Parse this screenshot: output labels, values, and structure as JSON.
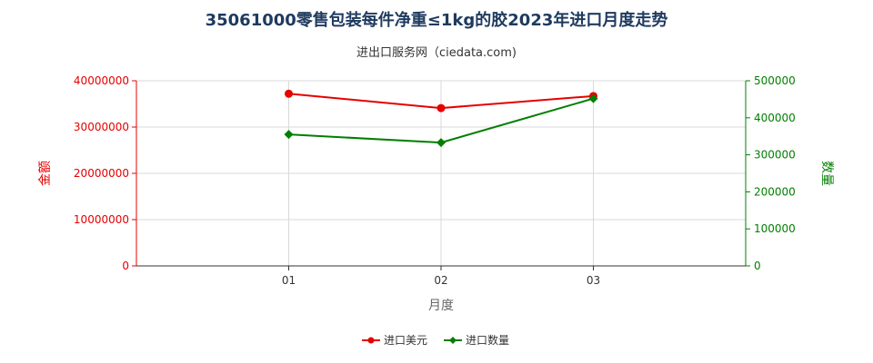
{
  "chart_data": {
    "type": "line",
    "title": "35061000零售包装每件净重≤1kg的胶2023年进口月度走势",
    "subtitle": "进出口服务网（ciedata.com)",
    "xlabel": "月度",
    "ylabel_left": "金额",
    "ylabel_right": "数量",
    "categories": [
      "01",
      "02",
      "03"
    ],
    "y_left": {
      "min": 0,
      "max": 40000000,
      "ticks": [
        0,
        10000000,
        20000000,
        30000000,
        40000000
      ],
      "tick_labels": [
        "0",
        "10000000",
        "20000000",
        "30000000",
        "40000000"
      ]
    },
    "y_right": {
      "min": 0,
      "max": 500000,
      "ticks": [
        0,
        100000,
        200000,
        300000,
        400000,
        500000
      ],
      "tick_labels": [
        "0",
        "100000",
        "200000",
        "300000",
        "400000",
        "500000"
      ]
    },
    "grid": true,
    "legend_position": "bottom",
    "series": [
      {
        "name": "进口美元",
        "axis": "left",
        "color": "#e60000",
        "marker": "circle",
        "values": [
          37200000,
          34100000,
          36700000
        ]
      },
      {
        "name": "进口数量",
        "axis": "right",
        "color": "#007f00",
        "marker": "diamond",
        "values": [
          355000,
          333000,
          452000
        ]
      }
    ]
  }
}
